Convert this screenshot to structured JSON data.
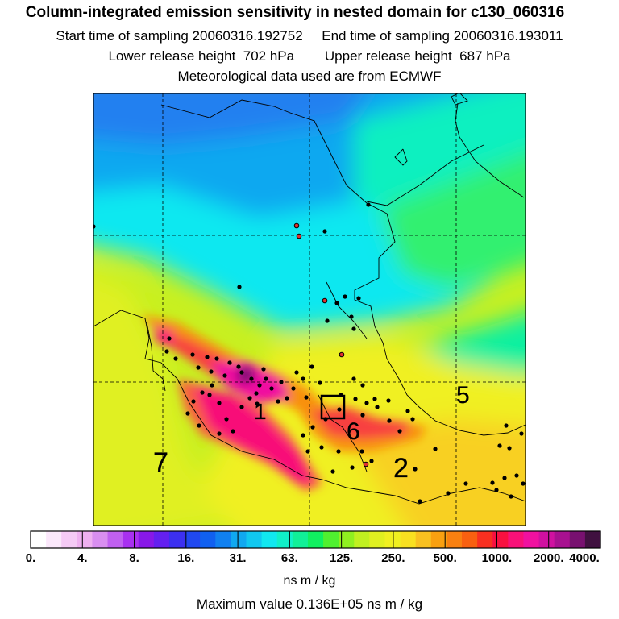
{
  "title": {
    "line1": "Column-integrated emission sensitivity in nested domain for c130_060316",
    "line2": "Start time of sampling 20060316.192752     End time of sampling 20060316.193011",
    "line3": "Lower release height  702 hPa        Upper release height  687 hPa",
    "line4": "Meteorological data used are from ECMWF"
  },
  "map": {
    "contour_labels": [
      "1",
      "2",
      "5",
      "6",
      "7"
    ]
  },
  "colorbar": {
    "colors": [
      "#ffffff",
      "#fbe8fb",
      "#f5caf5",
      "#efb0f0",
      "#d98ef0",
      "#c060f0",
      "#a830f0",
      "#8818e8",
      "#6420f0",
      "#3c30f0",
      "#2048f0",
      "#1060f0",
      "#1080f0",
      "#10a8f0",
      "#10c8f0",
      "#10e8f0",
      "#10f0c8",
      "#10f098",
      "#10f060",
      "#50f030",
      "#90f020",
      "#c0f020",
      "#e0f020",
      "#f0f020",
      "#f8e020",
      "#f8c020",
      "#f8a010",
      "#f88010",
      "#f86010",
      "#f83020",
      "#f81040",
      "#f81078",
      "#f010a0",
      "#d010a0",
      "#a81090",
      "#781070",
      "#401040"
    ],
    "tick_labels": [
      "0.",
      "4.",
      "8.",
      "16.",
      "31.",
      "63.",
      "125.",
      "250.",
      "500.",
      "1000.",
      "2000.",
      "4000."
    ],
    "units": "ns m / kg"
  },
  "max_value_text": "Maximum value  0.136E+05 ns m / kg"
}
